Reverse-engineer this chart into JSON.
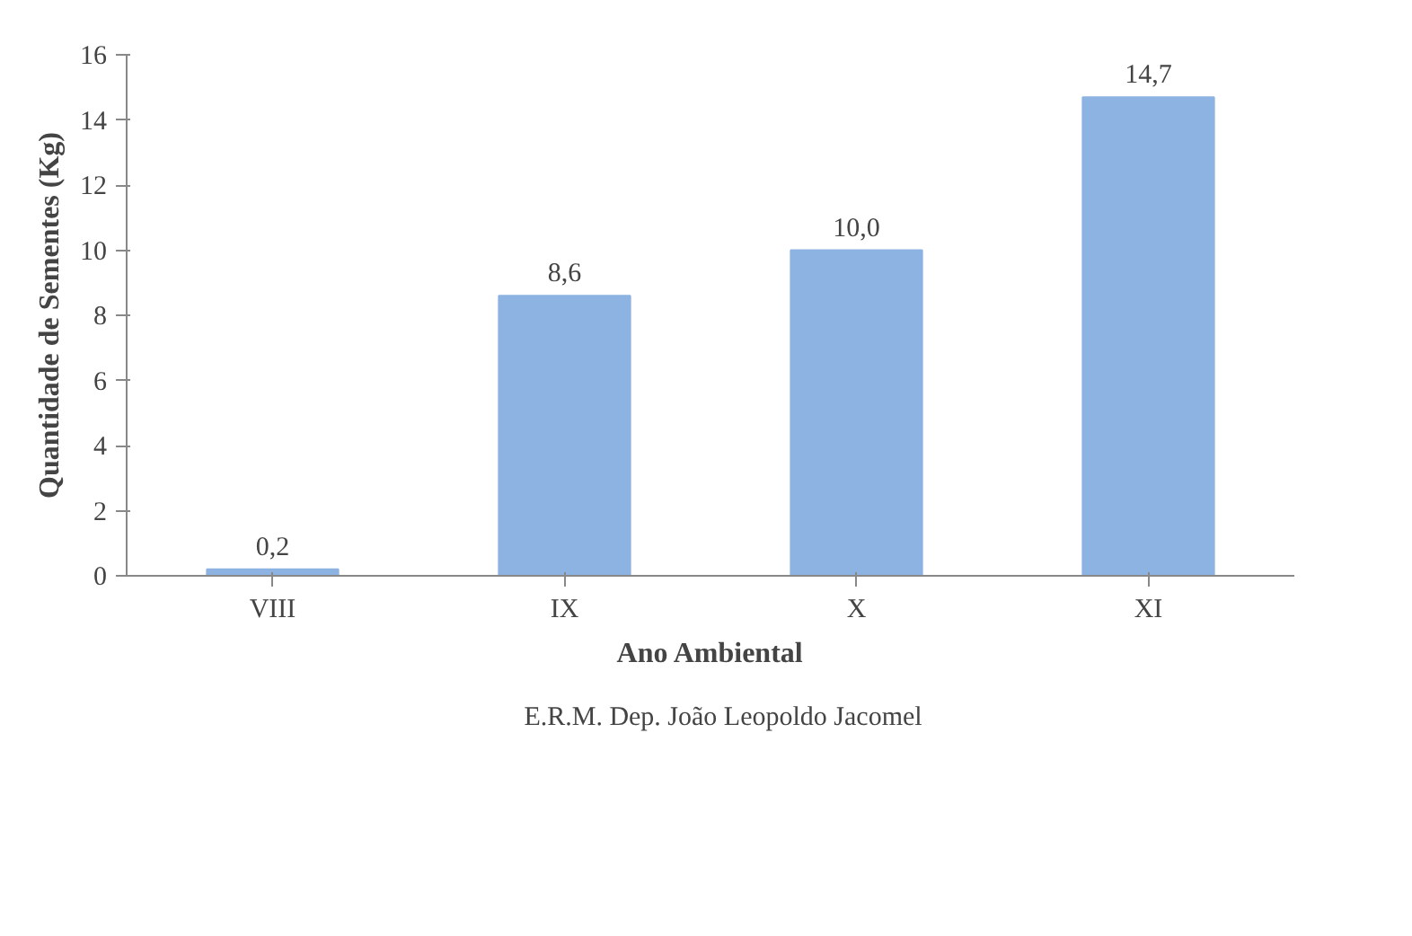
{
  "chart_data": {
    "type": "bar",
    "xlabel": "Ano Ambiental",
    "ylabel": "Quantidade de Sementes (Kg)",
    "categories": [
      "VIII",
      "IX",
      "X",
      "XI"
    ],
    "series": [
      {
        "name": "E.R.M. Dep. João Leopoldo Jacomel",
        "color": "#8db3e2",
        "values": [
          0.2,
          8.6,
          10.0,
          14.7
        ],
        "value_labels": [
          "0,2",
          "8,6",
          "10,0",
          "14,7"
        ]
      }
    ],
    "ylim": [
      0,
      16
    ],
    "yticks": [
      0,
      2,
      4,
      6,
      8,
      10,
      12,
      14,
      16
    ],
    "legend": "bottom"
  }
}
